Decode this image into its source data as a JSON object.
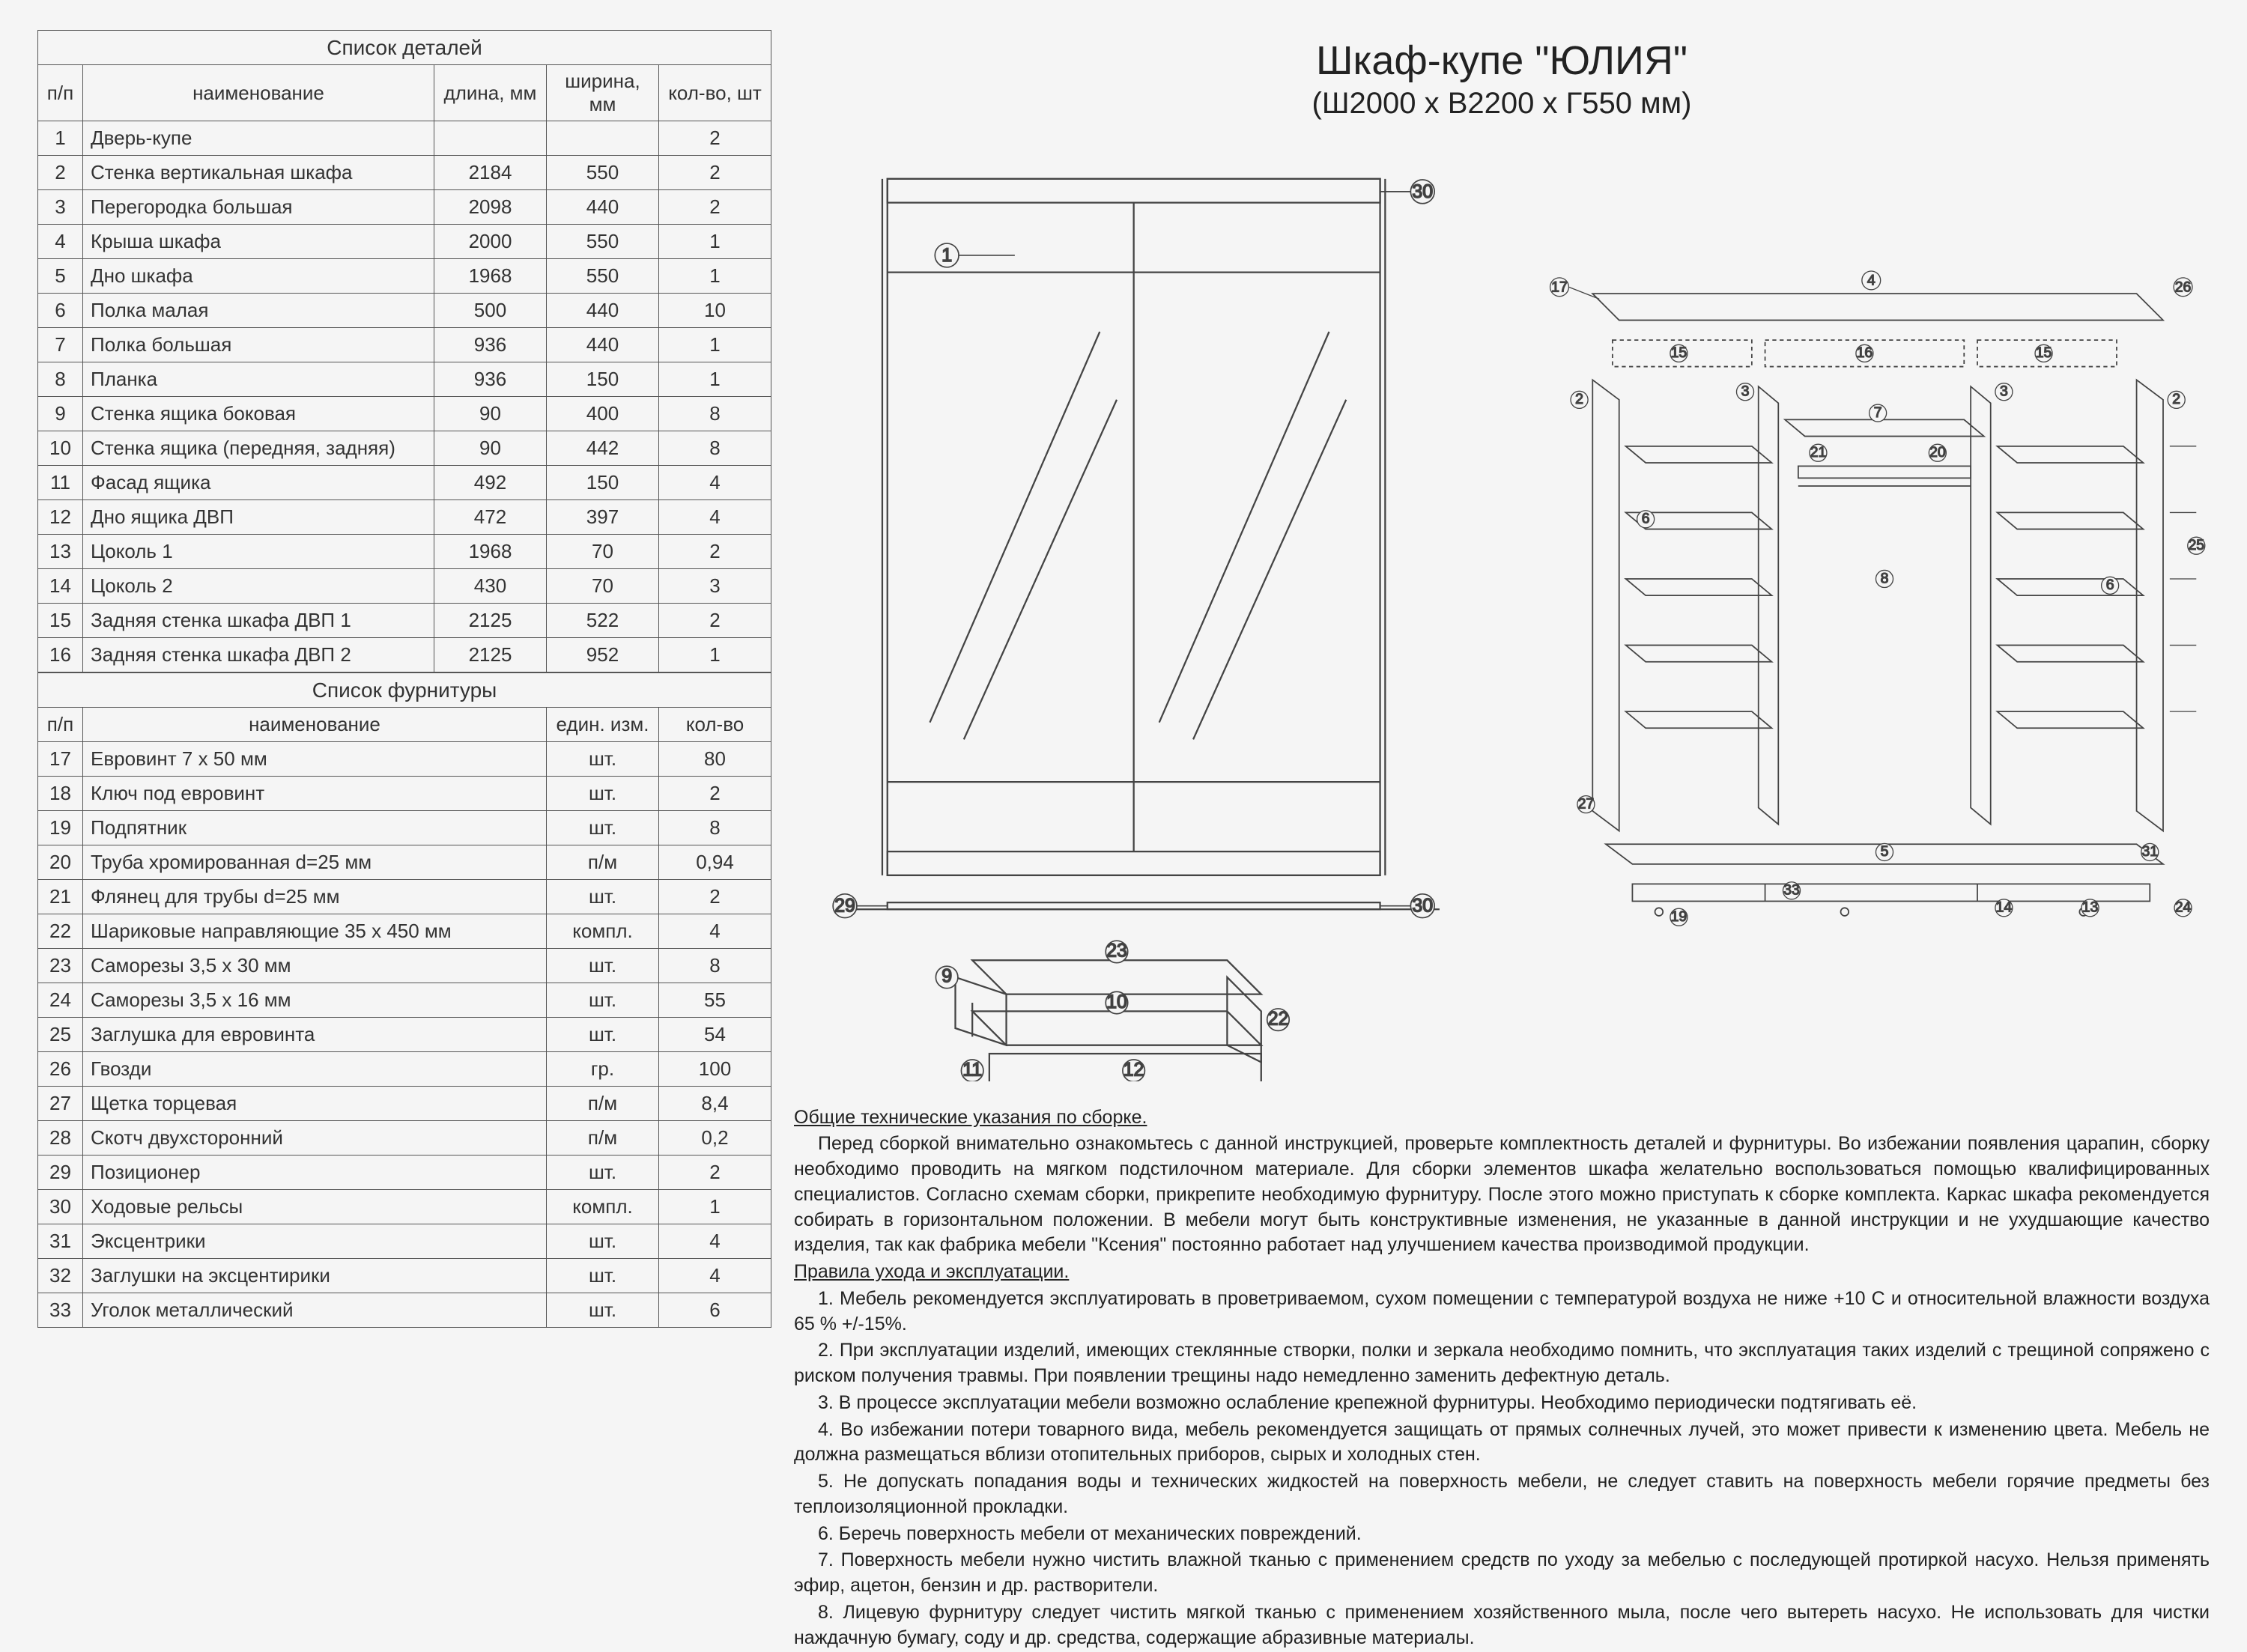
{
  "title": {
    "main": "Шкаф-купе \"ЮЛИЯ\"",
    "sub": "(Ш2000 х В2200 х Г550 мм)"
  },
  "parts_table": {
    "caption": "Список деталей",
    "headers": {
      "num": "п/п",
      "name": "наименование",
      "len": "длина, мм",
      "wid": "ширина, мм",
      "qty": "кол-во, шт"
    },
    "rows": [
      {
        "n": "1",
        "name": "Дверь-купе",
        "len": "",
        "wid": "",
        "qty": "2"
      },
      {
        "n": "2",
        "name": "Стенка вертикальная шкафа",
        "len": "2184",
        "wid": "550",
        "qty": "2"
      },
      {
        "n": "3",
        "name": "Перегородка большая",
        "len": "2098",
        "wid": "440",
        "qty": "2"
      },
      {
        "n": "4",
        "name": "Крыша шкафа",
        "len": "2000",
        "wid": "550",
        "qty": "1"
      },
      {
        "n": "5",
        "name": "Дно шкафа",
        "len": "1968",
        "wid": "550",
        "qty": "1"
      },
      {
        "n": "6",
        "name": "Полка малая",
        "len": "500",
        "wid": "440",
        "qty": "10"
      },
      {
        "n": "7",
        "name": "Полка большая",
        "len": "936",
        "wid": "440",
        "qty": "1"
      },
      {
        "n": "8",
        "name": "Планка",
        "len": "936",
        "wid": "150",
        "qty": "1"
      },
      {
        "n": "9",
        "name": "Стенка ящика боковая",
        "len": "90",
        "wid": "400",
        "qty": "8"
      },
      {
        "n": "10",
        "name": "Стенка ящика  (передняя, задняя)",
        "len": "90",
        "wid": "442",
        "qty": "8"
      },
      {
        "n": "11",
        "name": "Фасад ящика",
        "len": "492",
        "wid": "150",
        "qty": "4"
      },
      {
        "n": "12",
        "name": "Дно ящика ДВП",
        "len": "472",
        "wid": "397",
        "qty": "4"
      },
      {
        "n": "13",
        "name": "Цоколь 1",
        "len": "1968",
        "wid": "70",
        "qty": "2"
      },
      {
        "n": "14",
        "name": "Цоколь 2",
        "len": "430",
        "wid": "70",
        "qty": "3"
      },
      {
        "n": "15",
        "name": "Задняя стенка  шкафа ДВП 1",
        "len": "2125",
        "wid": "522",
        "qty": "2"
      },
      {
        "n": "16",
        "name": "Задняя стенка шкафа ДВП 2",
        "len": "2125",
        "wid": "952",
        "qty": "1"
      }
    ]
  },
  "hardware_table": {
    "caption": "Список фурнитуры",
    "headers": {
      "num": "п/п",
      "name": "наименование",
      "unit": "един. изм.",
      "qty": "кол-во"
    },
    "rows": [
      {
        "n": "17",
        "name": "Евровинт 7 х 50 мм",
        "unit": "шт.",
        "qty": "80"
      },
      {
        "n": "18",
        "name": "Ключ под евровинт",
        "unit": "шт.",
        "qty": "2"
      },
      {
        "n": "19",
        "name": "Подпятник",
        "unit": "шт.",
        "qty": "8"
      },
      {
        "n": "20",
        "name": "Труба хромированная d=25 мм",
        "unit": "п/м",
        "qty": "0,94"
      },
      {
        "n": "21",
        "name": "Флянец для трубы d=25 мм",
        "unit": "шт.",
        "qty": "2"
      },
      {
        "n": "22",
        "name": "Шариковые направляющие 35 х 450 мм",
        "unit": "компл.",
        "qty": "4"
      },
      {
        "n": "23",
        "name": "Саморезы 3,5 х 30 мм",
        "unit": "шт.",
        "qty": "8"
      },
      {
        "n": "24",
        "name": "Саморезы 3,5 х 16 мм",
        "unit": "шт.",
        "qty": "55"
      },
      {
        "n": "25",
        "name": "Заглушка для евровинта",
        "unit": "шт.",
        "qty": "54"
      },
      {
        "n": "26",
        "name": "Гвозди",
        "unit": "гр.",
        "qty": "100"
      },
      {
        "n": "27",
        "name": "Щетка торцевая",
        "unit": "п/м",
        "qty": "8,4"
      },
      {
        "n": "28",
        "name": "Скотч двухсторонний",
        "unit": "п/м",
        "qty": "0,2"
      },
      {
        "n": "29",
        "name": "Позиционер",
        "unit": "шт.",
        "qty": "2"
      },
      {
        "n": "30",
        "name": "Ходовые рельсы",
        "unit": "компл.",
        "qty": "1"
      },
      {
        "n": "31",
        "name": "Эксцентрики",
        "unit": "шт.",
        "qty": "4"
      },
      {
        "n": "32",
        "name": "Заглушки на эксцентирики",
        "unit": "шт.",
        "qty": "4"
      },
      {
        "n": "33",
        "name": "Уголок металлический",
        "unit": "шт.",
        "qty": "6"
      }
    ]
  },
  "instructions": {
    "h1": "Общие технические указания по сборке.",
    "p1": "Перед сборкой внимательно ознакомьтесь с данной инструкцией, проверьте комплектность деталей и фурнитуры. Во избежании появления царапин, сборку необходимо проводить на мягком подстилочном материале. Для сборки элементов шкафа желательно воспользоваться помощью квалифицированных специалистов. Согласно схемам сборки, прикрепите необходимую фурнитуру. После этого можно приступать к сборке комплекта. Каркас шкафа рекомендуется собирать в горизонтальном положении. В мебели могут быть конструктивные изменения, не указанные в данной инструкции и не ухудшающие качество изделия, так как фабрика мебели \"Ксения\" постоянно работает над улучшением качества производимой продукции.",
    "h2": "Правила ухода и эксплуатации.",
    "items": [
      "1. Мебель рекомендуется эксплуатировать в проветриваемом, сухом помещении с температурой воздуха не ниже +10 С и относительной влажности воздуха 65 % +/-15%.",
      "2. При эксплуатации изделий, имеющих стеклянные створки, полки и зеркала необходимо помнить, что эксплуатация таких изделий с трещиной сопряжено с риском получения травмы. При появлении трещины надо немедленно заменить дефектную деталь.",
      "3. В процессе эксплуатации мебели возможно ослабление крепежной фурнитуры. Необходимо периодически подтягивать её.",
      "4. Во избежании потери товарного вида, мебель рекомендуется защищать от прямых солнечных лучей, это может привести к изменению цвета. Мебель не должна размещаться вблизи отопительных приборов, сырых и холодных стен.",
      "5. Не допускать попадания воды и технических жидкостей на поверхность мебели, не следует ставить на поверхность мебели горячие предметы без теплоизоляционной прокладки.",
      "6. Беречь поверхность мебели от механических повреждений.",
      "7. Поверхность мебели нужно чистить влажной тканью с применением средств по уходу за мебелью с последующей протиркой насухо. Нельзя применять эфир, ацетон, бензин и др. растворители.",
      "8. Лицевую фурнитуру следует чистить мягкой тканью с применением хозяйственного мыла, после чего вытереть насухо. Не использовать для чистки наждачную бумагу, соду и др. средства, содержащие абразивные материалы."
    ]
  },
  "diagrams": {
    "left": {
      "callouts": [
        "1",
        "29",
        "30",
        "30",
        "9",
        "10",
        "11",
        "12",
        "22",
        "23"
      ]
    },
    "right": {
      "callouts": [
        "2",
        "3",
        "3",
        "4",
        "5",
        "6",
        "6",
        "7",
        "8",
        "13",
        "14",
        "15",
        "15",
        "16",
        "17",
        "19",
        "20",
        "21",
        "24",
        "25",
        "26",
        "27",
        "31",
        "33"
      ]
    }
  },
  "styling": {
    "page_bg": "#f5f5f5",
    "line_color": "#444444",
    "text_color": "#222222",
    "table_border": "#555555",
    "font_family": "Arial",
    "title_fontsize_pt": 40,
    "subtitle_fontsize_pt": 30,
    "table_fontsize_pt": 20,
    "body_fontsize_pt": 19
  }
}
